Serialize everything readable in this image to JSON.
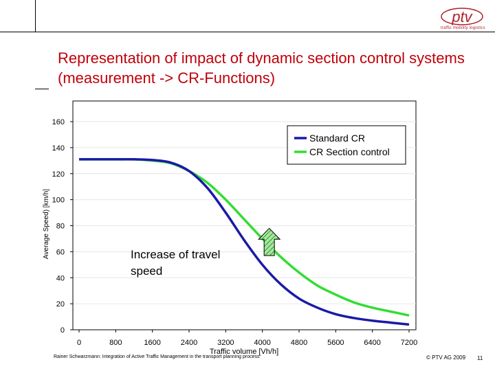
{
  "header": {
    "logo_text": "ptv",
    "logo_tagline": "traffic mobility logistics",
    "title": "Representation of impact of dynamic section control systems (measurement -> CR-Functions)"
  },
  "chart_data": {
    "type": "line",
    "title": "",
    "xlabel": "Traffic volume [Vh/h]",
    "ylabel": "Average Speed) [km/h]",
    "xlim": [
      0,
      7200
    ],
    "ylim": [
      0,
      160
    ],
    "x_ticks": [
      0,
      800,
      1600,
      2400,
      3200,
      4000,
      4800,
      5600,
      6400,
      7200
    ],
    "y_ticks": [
      0,
      20,
      40,
      60,
      80,
      100,
      120,
      140,
      160
    ],
    "grid": "horizontal",
    "legend_position": "top-right",
    "series": [
      {
        "name": "Standard CR",
        "color": "#1a1aa6",
        "x": [
          0,
          400,
          800,
          1200,
          1600,
          2000,
          2400,
          2800,
          3200,
          3600,
          4000,
          4400,
          4800,
          5200,
          5600,
          6000,
          6400,
          6800,
          7200
        ],
        "y": [
          131,
          131,
          131,
          131,
          130.5,
          128.5,
          122,
          109,
          90,
          69,
          50,
          35,
          24,
          17,
          12,
          9,
          7,
          5.5,
          4
        ]
      },
      {
        "name": "CR Section control",
        "color": "#33dd33",
        "x": [
          0,
          400,
          800,
          1200,
          1600,
          2000,
          2400,
          2800,
          3200,
          3600,
          4000,
          4400,
          4800,
          5200,
          5600,
          6000,
          6400,
          6800,
          7200
        ],
        "y": [
          131,
          131,
          131,
          131,
          130,
          128,
          122,
          113,
          100,
          85,
          70,
          56,
          44,
          34,
          27,
          21,
          17,
          14,
          11
        ]
      }
    ],
    "annotations": [
      {
        "text": "Increase of travel speed",
        "x": 4150,
        "y_from": 57,
        "y_to": 78
      }
    ]
  },
  "footer": {
    "left": "Rainer Schwarzmann: Integration of Active Traffic Management in the transport planning process",
    "copyright": "© PTV AG 2009",
    "page": "11"
  }
}
